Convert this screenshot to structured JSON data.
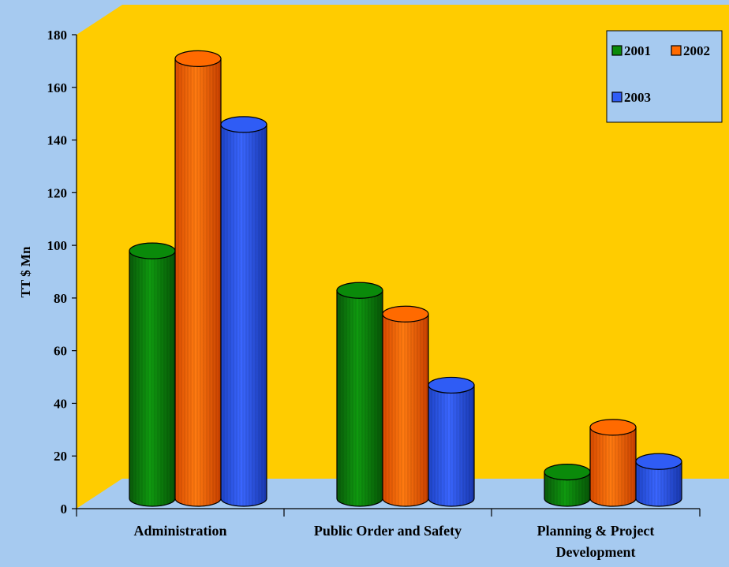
{
  "chart_data": {
    "type": "bar",
    "title": "",
    "xlabel": "",
    "ylabel": "TT $ Mn",
    "ylim": [
      0,
      180
    ],
    "yticks": [
      0,
      20,
      40,
      60,
      80,
      100,
      120,
      140,
      160,
      180
    ],
    "categories": [
      "Administration",
      "Public Order and Safety",
      "Planning & Project Development"
    ],
    "series": [
      {
        "name": "2001",
        "values": [
          94,
          79,
          10
        ],
        "color": "#0a8a0a"
      },
      {
        "name": "2002",
        "values": [
          167,
          70,
          27
        ],
        "color": "#ff6a00"
      },
      {
        "name": "2003",
        "values": [
          142,
          43,
          14
        ],
        "color": "#2f5cf5"
      }
    ],
    "legend_position": "top-right",
    "colors": {
      "background": "#a6caf0",
      "back_wall": "#ffcc00",
      "floor": "#a6caf0"
    }
  }
}
